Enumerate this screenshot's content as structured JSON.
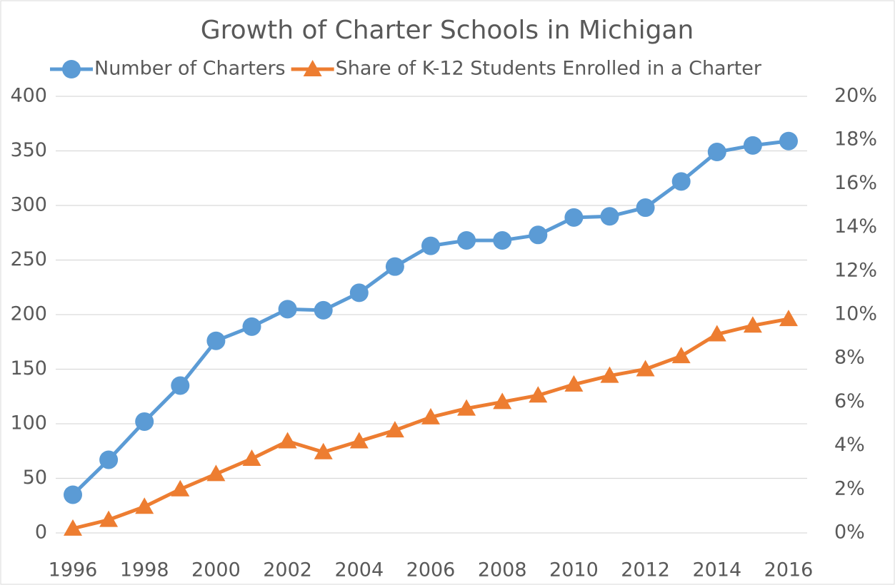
{
  "chart_data": {
    "type": "line",
    "title": "Growth of Charter Schools in Michigan",
    "x": [
      1996,
      1997,
      1998,
      1999,
      2000,
      2001,
      2002,
      2003,
      2004,
      2005,
      2006,
      2007,
      2008,
      2009,
      2010,
      2011,
      2012,
      2013,
      2014,
      2015,
      2016
    ],
    "xlim": [
      1996,
      2016
    ],
    "xticks": [
      1996,
      1998,
      2000,
      2002,
      2004,
      2006,
      2008,
      2010,
      2012,
      2014,
      2016
    ],
    "ylim": [
      0,
      400
    ],
    "yticks": [
      0,
      50,
      100,
      150,
      200,
      250,
      300,
      350,
      400
    ],
    "y2lim": [
      0,
      20
    ],
    "y2ticks": [
      {
        "value": 0,
        "label": "0%"
      },
      {
        "value": 2,
        "label": "2%"
      },
      {
        "value": 4,
        "label": "4%"
      },
      {
        "value": 6,
        "label": "6%"
      },
      {
        "value": 8,
        "label": "8%"
      },
      {
        "value": 10,
        "label": "10%"
      },
      {
        "value": 12,
        "label": "12%"
      },
      {
        "value": 14,
        "label": "14%"
      },
      {
        "value": 16,
        "label": "16%"
      },
      {
        "value": 18,
        "label": "18%"
      },
      {
        "value": 20,
        "label": "20%"
      }
    ],
    "grid": true,
    "legend": "top",
    "series": [
      {
        "name": "Number of Charters",
        "color": "#5b9bd5",
        "marker": "circle",
        "values": [
          35,
          67,
          102,
          135,
          176,
          189,
          205,
          204,
          220,
          244,
          263,
          268,
          268,
          273,
          289,
          290,
          298,
          322,
          349,
          355,
          359
        ]
      },
      {
        "name": "Share of K-12 Students Enrolled in a Charter",
        "color": "#ed7d31",
        "marker": "triangle",
        "axis": "y2",
        "values": [
          0.2,
          0.6,
          1.2,
          2.0,
          2.7,
          3.4,
          4.2,
          3.7,
          4.2,
          4.7,
          5.3,
          5.7,
          6.0,
          6.3,
          6.8,
          7.2,
          7.5,
          8.1,
          9.1,
          9.5,
          9.8
        ]
      }
    ]
  }
}
